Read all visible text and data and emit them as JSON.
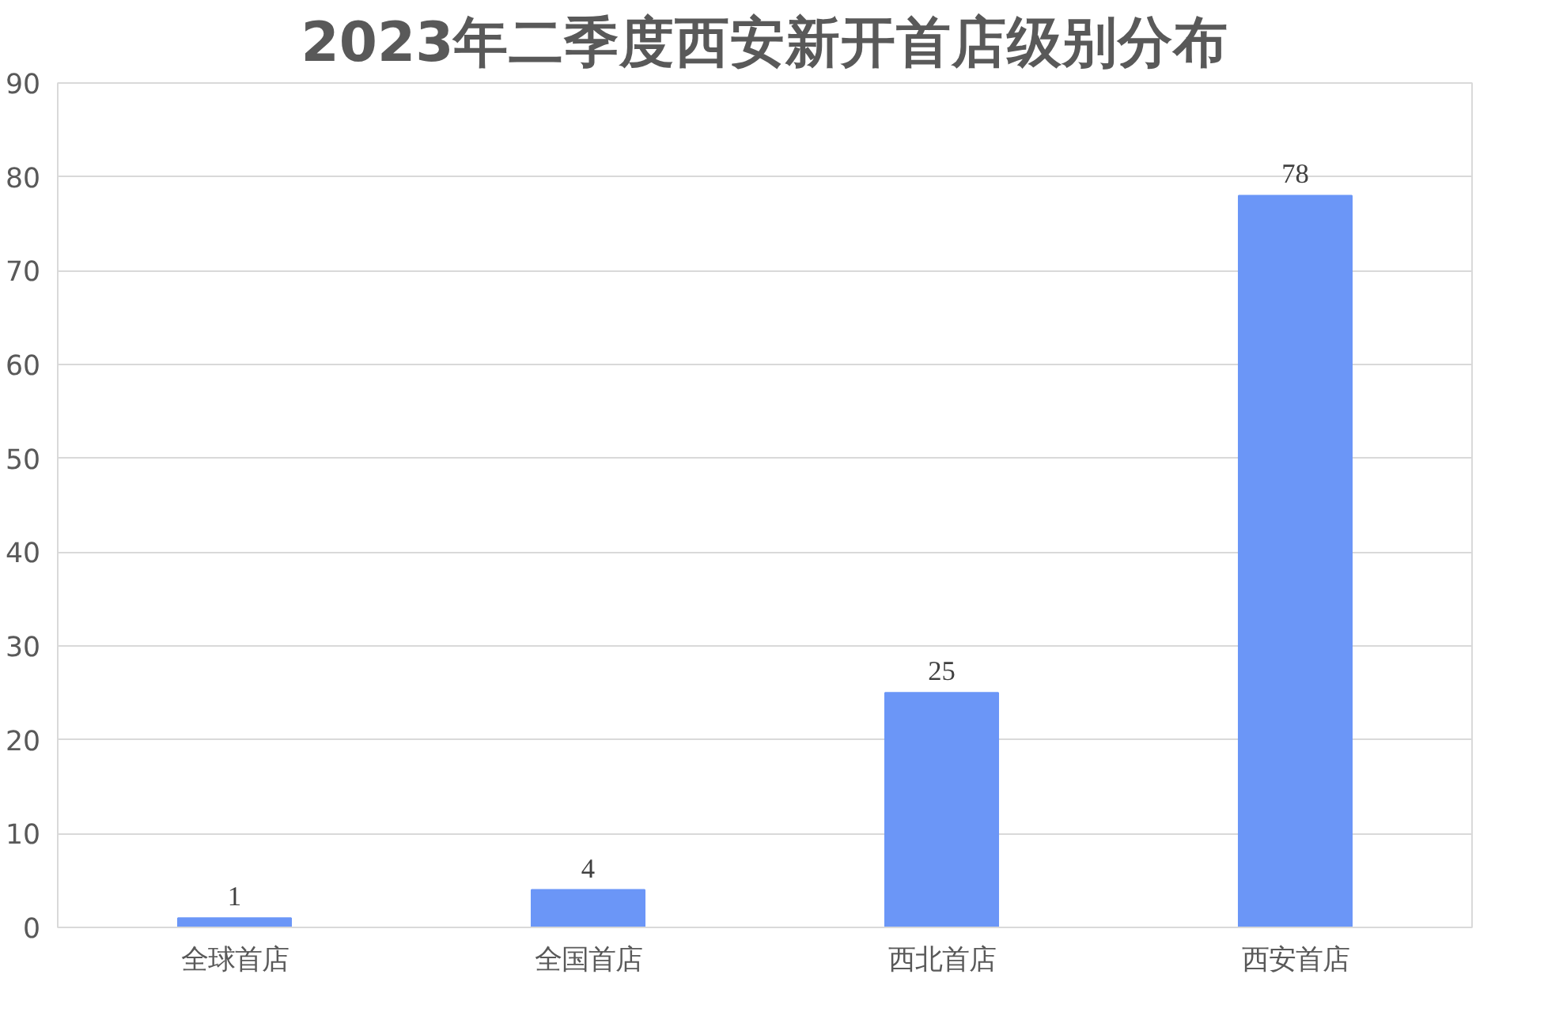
{
  "chart_data": {
    "type": "bar",
    "title": "2023年二季度西安新开首店级别分布",
    "categories": [
      "全球首店",
      "全国首店",
      "西北首店",
      "西安首店"
    ],
    "values": [
      1,
      4,
      25,
      78
    ],
    "color": "#6b96f7",
    "ylim": [
      0,
      90
    ],
    "yticks": [
      0,
      10,
      20,
      30,
      40,
      50,
      60,
      70,
      80,
      90
    ],
    "grid": "y",
    "data_labels": true
  }
}
